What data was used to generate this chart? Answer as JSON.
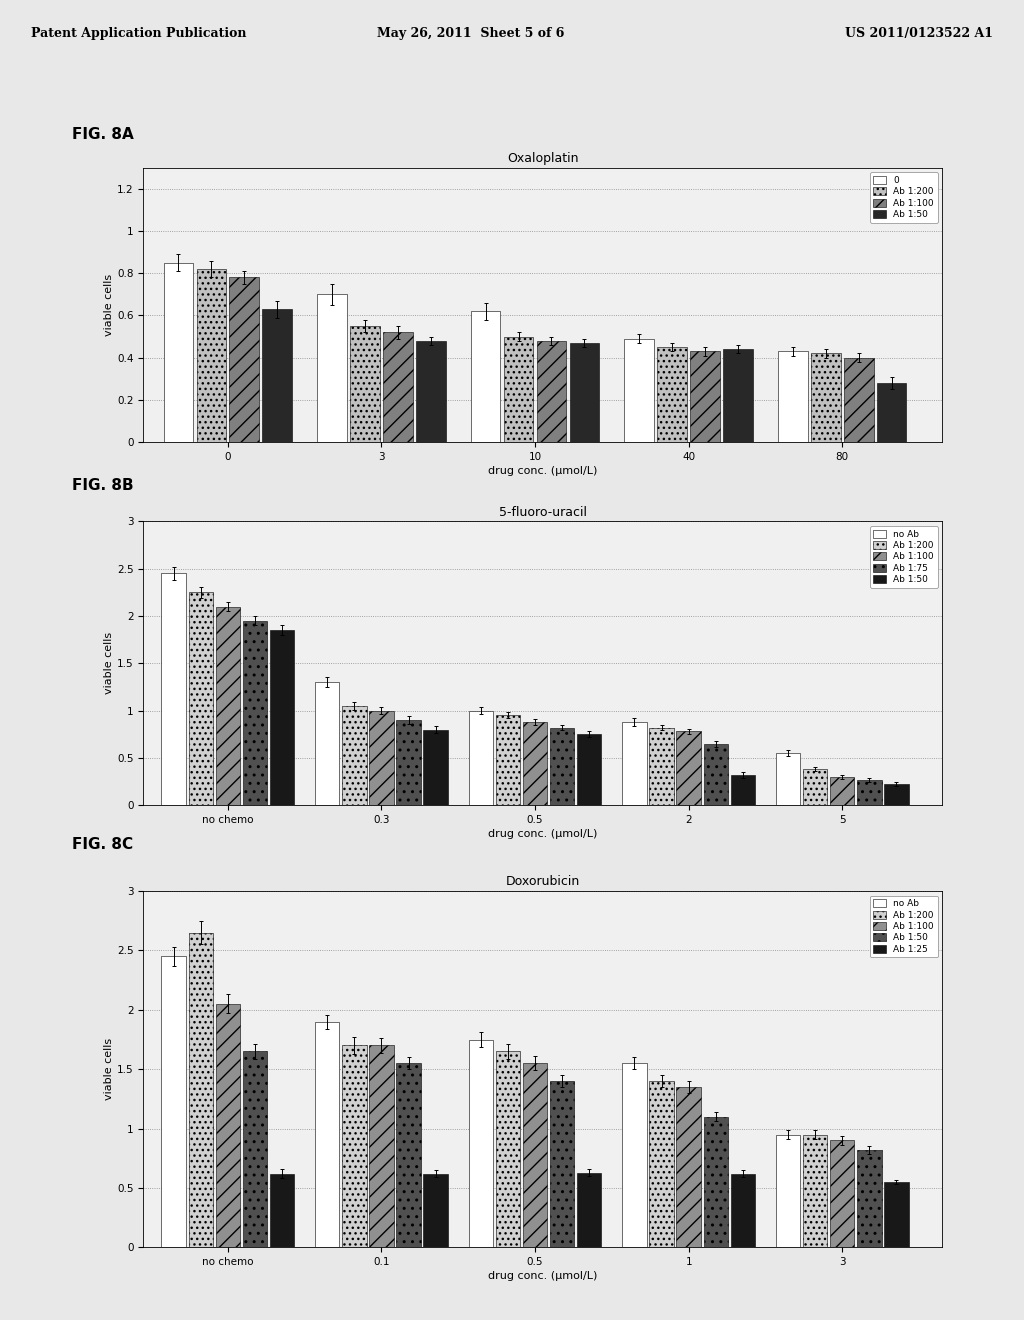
{
  "page_header": {
    "left": "Patent Application Publication",
    "middle": "May 26, 2011  Sheet 5 of 6",
    "right": "US 2011/0123522 A1"
  },
  "fig8A": {
    "title": "Oxaloplatin",
    "xlabel": "drug conc. (μmol/L)",
    "ylabel": "viable cells",
    "fig_label": "FIG. 8A",
    "xtick_labels": [
      "0",
      "3",
      "10",
      "40",
      "80"
    ],
    "ylim": [
      0,
      1.3
    ],
    "yticks": [
      0,
      0.2,
      0.4,
      0.6,
      0.8,
      1.0,
      1.2
    ],
    "ytick_labels": [
      "0",
      "0.2",
      "0.4",
      "0.6",
      "0.8",
      "1",
      "1.2"
    ],
    "legend_labels": [
      "0",
      "Ab 1:200",
      "Ab 1:100",
      "Ab 1:50"
    ],
    "bar_colors": [
      "#ffffff",
      "#c0c0c0",
      "#808080",
      "#282828"
    ],
    "bar_hatches": [
      "",
      "...",
      "//",
      ""
    ],
    "data": [
      [
        0.85,
        0.82,
        0.78,
        0.63
      ],
      [
        0.7,
        0.55,
        0.52,
        0.48
      ],
      [
        0.62,
        0.5,
        0.48,
        0.47
      ],
      [
        0.49,
        0.45,
        0.43,
        0.44
      ],
      [
        0.43,
        0.42,
        0.4,
        0.28
      ]
    ],
    "errors": [
      [
        0.04,
        0.04,
        0.03,
        0.04
      ],
      [
        0.05,
        0.03,
        0.03,
        0.02
      ],
      [
        0.04,
        0.02,
        0.02,
        0.02
      ],
      [
        0.02,
        0.02,
        0.02,
        0.02
      ],
      [
        0.02,
        0.02,
        0.02,
        0.03
      ]
    ]
  },
  "fig8B": {
    "title": "5-fluoro-uracil",
    "xlabel": "drug conc. (μmol/L)",
    "ylabel": "viable cells",
    "fig_label": "FIG. 8B",
    "xtick_labels": [
      "no chemo",
      "0.3",
      "0.5",
      "2",
      "5"
    ],
    "ylim": [
      0,
      3.0
    ],
    "yticks": [
      0,
      0.5,
      1.0,
      1.5,
      2.0,
      2.5,
      3.0
    ],
    "ytick_labels": [
      "0",
      "0.5",
      "1",
      "1.5",
      "2",
      "2.5",
      "3"
    ],
    "legend_labels": [
      "no Ab",
      "Ab 1:200",
      "Ab 1:100",
      "Ab 1:75",
      "Ab 1:50"
    ],
    "bar_colors": [
      "#ffffff",
      "#d0d0d0",
      "#909090",
      "#505050",
      "#181818"
    ],
    "bar_hatches": [
      "",
      "...",
      "//",
      "..",
      ""
    ],
    "data": [
      [
        2.45,
        2.25,
        2.1,
        1.95,
        1.85
      ],
      [
        1.3,
        1.05,
        1.0,
        0.9,
        0.8
      ],
      [
        1.0,
        0.95,
        0.88,
        0.82,
        0.75
      ],
      [
        0.88,
        0.82,
        0.78,
        0.65,
        0.32
      ],
      [
        0.55,
        0.38,
        0.3,
        0.27,
        0.22
      ]
    ],
    "errors": [
      [
        0.07,
        0.06,
        0.05,
        0.05,
        0.05
      ],
      [
        0.05,
        0.04,
        0.04,
        0.04,
        0.04
      ],
      [
        0.04,
        0.03,
        0.03,
        0.03,
        0.03
      ],
      [
        0.04,
        0.03,
        0.03,
        0.03,
        0.03
      ],
      [
        0.03,
        0.02,
        0.02,
        0.02,
        0.02
      ]
    ]
  },
  "fig8C": {
    "title": "Doxorubicin",
    "xlabel": "drug conc. (μmol/L)",
    "ylabel": "viable cells",
    "fig_label": "FIG. 8C",
    "xtick_labels": [
      "no chemo",
      "0.1",
      "0.5",
      "1",
      "3"
    ],
    "ylim": [
      0,
      3.0
    ],
    "yticks": [
      0,
      0.5,
      1.0,
      1.5,
      2.0,
      2.5,
      3.0
    ],
    "ytick_labels": [
      "0",
      "0.5",
      "1",
      "1.5",
      "2",
      "2.5",
      "3"
    ],
    "legend_labels": [
      "no Ab",
      "Ab 1:200",
      "Ab 1:100",
      "Ab 1:50",
      "Ab 1:25"
    ],
    "bar_colors": [
      "#ffffff",
      "#d0d0d0",
      "#909090",
      "#505050",
      "#181818"
    ],
    "bar_hatches": [
      "",
      "...",
      "//",
      "..",
      ""
    ],
    "data": [
      [
        2.45,
        2.65,
        2.05,
        1.65,
        0.62
      ],
      [
        1.9,
        1.7,
        1.7,
        1.55,
        0.62
      ],
      [
        1.75,
        1.65,
        1.55,
        1.4,
        0.63
      ],
      [
        1.55,
        1.4,
        1.35,
        1.1,
        0.62
      ],
      [
        0.95,
        0.95,
        0.9,
        0.82,
        0.55
      ]
    ],
    "errors": [
      [
        0.08,
        0.1,
        0.08,
        0.06,
        0.04
      ],
      [
        0.06,
        0.07,
        0.06,
        0.05,
        0.03
      ],
      [
        0.06,
        0.06,
        0.06,
        0.05,
        0.03
      ],
      [
        0.05,
        0.05,
        0.05,
        0.04,
        0.03
      ],
      [
        0.04,
        0.04,
        0.04,
        0.03,
        0.02
      ]
    ]
  },
  "bg_color": "#e8e8e8",
  "chart_bg": "#f0f0f0"
}
